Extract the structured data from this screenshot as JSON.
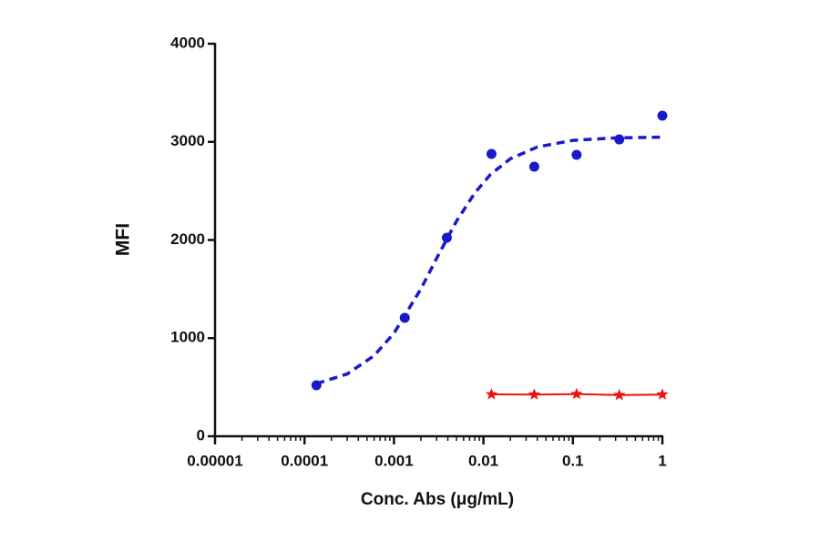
{
  "chart_data": {
    "type": "scatter",
    "xlabel": "Conc. Abs (μg/mL)",
    "ylabel": "MFI",
    "xscale": "log",
    "minor_ticks": true,
    "xlim": [
      1e-05,
      1
    ],
    "xticks": [
      {
        "value": 1e-05,
        "label": "0.00001"
      },
      0.0001,
      0.001,
      0.01,
      0.1,
      1
    ],
    "ylim": [
      0,
      4000
    ],
    "yticks": [
      0,
      1000,
      2000,
      3000,
      4000
    ],
    "series": [
      {
        "color": "#1a1acc",
        "marker": "circle",
        "line": "none",
        "x": [
          0.000136,
          0.00132,
          0.0039,
          0.0123,
          0.037,
          0.11,
          0.33,
          1
        ],
        "values": [
          520,
          1207,
          2023,
          2877,
          2747,
          2868,
          3025,
          3267
        ]
      },
      {
        "color": "#1a1acc",
        "marker": "none",
        "line": "dashed",
        "x": [
          0.000136,
          0.0003,
          0.0006,
          0.001,
          0.002,
          0.003,
          0.005,
          0.008,
          0.012,
          0.02,
          0.04,
          0.1,
          0.3,
          1
        ],
        "values": [
          536,
          635,
          821,
          1050,
          1502,
          1814,
          2191,
          2479,
          2668,
          2828,
          2948,
          3015,
          3040,
          3048
        ]
      },
      {
        "color": "#ee1111",
        "marker": "star",
        "line": "solid",
        "x": [
          0.0123,
          0.037,
          0.11,
          0.33,
          1
        ],
        "values": [
          427,
          425,
          430,
          420,
          425
        ]
      }
    ]
  }
}
